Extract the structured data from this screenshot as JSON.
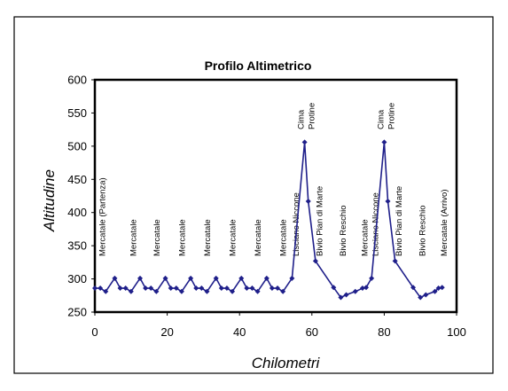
{
  "chart_data": {
    "type": "line",
    "title": "Profilo Altimetrico",
    "xlabel": "Chilometri",
    "ylabel": "Altitudine",
    "xlim": [
      0,
      100
    ],
    "ylim": [
      250,
      600
    ],
    "xticks": [
      0,
      20,
      40,
      60,
      80,
      100
    ],
    "yticks": [
      250,
      300,
      350,
      400,
      450,
      500,
      550,
      600
    ],
    "grid": false,
    "series": [
      {
        "color": "#1f1f8a",
        "x": [
          0,
          1.5,
          3,
          5.5,
          7,
          8.5,
          10,
          12.5,
          14,
          15.5,
          17,
          19.5,
          21,
          22.5,
          24,
          26.5,
          28,
          29.5,
          31,
          33.5,
          35,
          36.5,
          38,
          40.5,
          42,
          43.5,
          45,
          47.5,
          49,
          50.5,
          52,
          54.5,
          58,
          59,
          61,
          66,
          68,
          69.5,
          72,
          74,
          75,
          76.5,
          80,
          81,
          83,
          88,
          90,
          91.5,
          94,
          95,
          96
        ],
        "y": [
          286,
          286,
          281,
          301,
          286,
          286,
          281,
          301,
          286,
          286,
          281,
          301,
          286,
          286,
          281,
          301,
          286,
          286,
          281,
          301,
          286,
          286,
          281,
          301,
          286,
          286,
          281,
          301,
          286,
          286,
          281,
          301,
          506,
          417,
          327,
          287,
          272,
          276,
          281,
          286,
          287,
          301,
          506,
          417,
          327,
          287,
          272,
          276,
          281,
          286,
          287
        ]
      }
    ],
    "annotations": [
      {
        "text": "Mercatale (Partenza)",
        "x": 2
      },
      {
        "text": "Mercatale",
        "x": 10.5
      },
      {
        "text": "Mercatale",
        "x": 17
      },
      {
        "text": "Mercatale",
        "x": 24
      },
      {
        "text": "Mercatale",
        "x": 31
      },
      {
        "text": "Mercatale",
        "x": 38
      },
      {
        "text": "Mercatale",
        "x": 45
      },
      {
        "text": "Mercatale",
        "x": 52
      },
      {
        "text": "Lisciano Niccone",
        "x": 55.5
      },
      {
        "text": "Cima Protine",
        "x": 58.5
      },
      {
        "text": "Bivio Pian di Marte",
        "x": 62
      },
      {
        "text": "Bivio Reschio",
        "x": 68.5
      },
      {
        "text": "Mercatale",
        "x": 74.5
      },
      {
        "text": "Lisciano Niccone",
        "x": 77.5
      },
      {
        "text": "Cima Protine",
        "x": 80.5
      },
      {
        "text": "Bivio Pian di Marte",
        "x": 84
      },
      {
        "text": "Bivio Reschio",
        "x": 90.5
      },
      {
        "text": "Mercatale (Arrivo)",
        "x": 96.5
      }
    ]
  }
}
